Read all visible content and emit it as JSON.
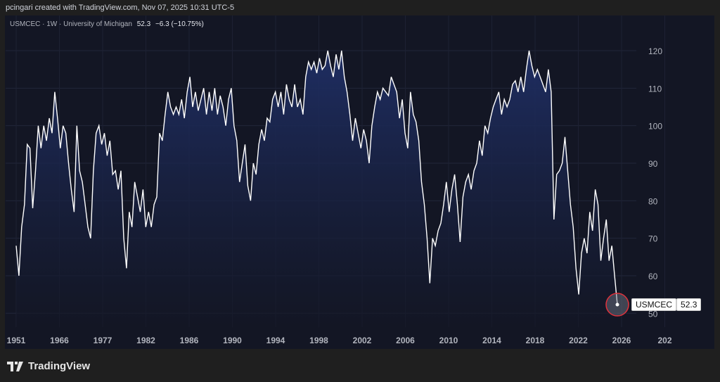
{
  "header": {
    "credit": "pcingari created with TradingView.com, Nov 07, 2025 10:31 UTC-5"
  },
  "legend": {
    "symbol_info": "USMCEC · 1W · University of Michigan",
    "last": "52.3",
    "change": "−6.3 (−10.75%)"
  },
  "price_tag": {
    "symbol": "USMCEC",
    "value": "52.3"
  },
  "brand": {
    "name": "TradingView"
  },
  "colors": {
    "line": "#ffffff",
    "fill_top": "#1f2f66",
    "marker": "#e0323c"
  },
  "chart_data": {
    "type": "area",
    "title": "USMCEC · 1W · University of Michigan",
    "y_ticks": [
      "120",
      "110",
      "100",
      "90",
      "80",
      "70",
      "60",
      "50"
    ],
    "ylim": [
      47,
      124
    ],
    "x_ticks": [
      "1951",
      "1966",
      "1977",
      "1982",
      "1986",
      "1990",
      "1994",
      "1998",
      "2002",
      "2006",
      "2010",
      "2014",
      "2018",
      "2022",
      "2026",
      "202"
    ],
    "grid": true,
    "values": [
      68,
      60,
      73,
      79,
      95,
      94,
      78,
      88,
      100,
      94,
      100,
      96,
      102,
      98,
      109,
      102,
      94,
      100,
      98,
      90,
      83,
      77,
      100,
      88,
      85,
      79,
      73,
      70,
      88,
      98,
      100,
      95,
      98,
      92,
      96,
      87,
      88,
      83,
      88,
      70,
      62,
      77,
      73,
      85,
      81,
      77,
      83,
      73,
      77,
      73,
      79,
      81,
      98,
      96,
      103,
      109,
      105,
      103,
      105,
      103,
      107,
      102,
      109,
      113,
      105,
      109,
      104,
      107,
      110,
      103,
      109,
      104,
      110,
      103,
      108,
      105,
      100,
      107,
      110,
      100,
      96,
      85,
      90,
      95,
      84,
      80,
      90,
      87,
      95,
      99,
      96,
      102,
      101,
      107,
      109,
      105,
      109,
      103,
      111,
      107,
      105,
      111,
      105,
      107,
      103,
      113,
      117,
      115,
      117,
      114,
      118,
      115,
      116,
      120,
      116,
      113,
      119,
      115,
      120,
      113,
      109,
      103,
      96,
      102,
      98,
      94,
      99,
      96,
      90,
      100,
      105,
      109,
      107,
      110,
      109,
      108,
      113,
      111,
      109,
      102,
      107,
      98,
      94,
      109,
      103,
      101,
      96,
      85,
      79,
      70,
      58,
      70,
      68,
      72,
      74,
      79,
      85,
      77,
      83,
      87,
      79,
      69,
      81,
      85,
      87,
      83,
      88,
      90,
      96,
      92,
      100,
      98,
      102,
      105,
      107,
      109,
      103,
      107,
      105,
      107,
      111,
      112,
      109,
      113,
      109,
      115,
      120,
      116,
      113,
      115,
      113,
      111,
      109,
      115,
      109,
      75,
      87,
      88,
      90,
      97,
      88,
      79,
      73,
      62,
      55,
      66,
      70,
      66,
      77,
      72,
      83,
      79,
      64,
      70,
      75,
      64,
      68,
      60,
      52.3
    ]
  }
}
